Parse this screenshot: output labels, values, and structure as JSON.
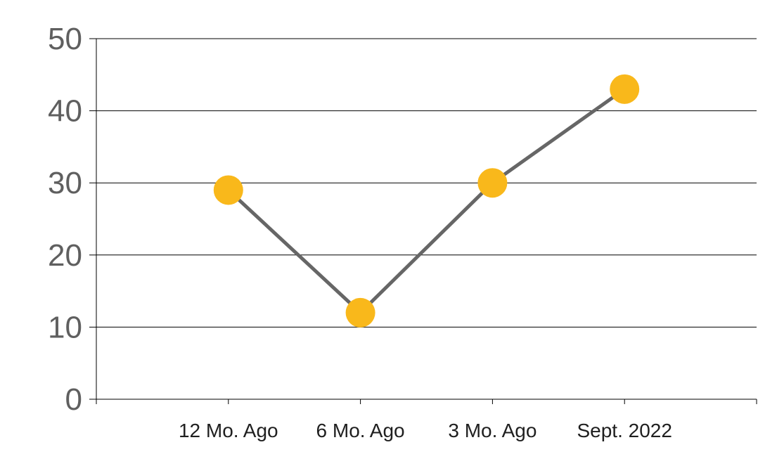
{
  "chart_data": {
    "type": "line",
    "categories": [
      "12 Mo. Ago",
      "6 Mo. Ago",
      "3 Mo. Ago",
      "Sept. 2022"
    ],
    "series": [
      {
        "values": [
          29,
          12,
          30,
          43
        ]
      }
    ],
    "y_ticks": [
      "0",
      "10",
      "20",
      "30",
      "40",
      "50"
    ],
    "ylim": [
      0,
      50
    ],
    "grid": true,
    "line_color": "#666666",
    "marker_color": "#F9B81B",
    "axis_color": "#000000"
  }
}
